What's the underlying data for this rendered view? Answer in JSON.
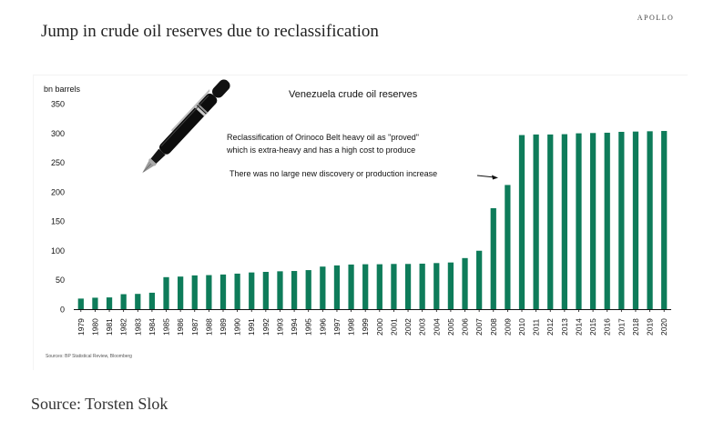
{
  "header": {
    "brand": "APOLLO",
    "headline": "Jump in crude oil reserves due to reclassification"
  },
  "footer": {
    "data_source": "Sources: BP Statistical Review, Bloomberg",
    "attribution": "Source: Torsten Slok"
  },
  "chart_data": {
    "type": "bar",
    "title": "Venezuela crude oil reserves",
    "ylabel": "bn barrels",
    "xlabel": "",
    "ylim": [
      0,
      350
    ],
    "yticks": [
      0,
      50,
      100,
      150,
      200,
      250,
      300,
      350
    ],
    "grid": false,
    "bar_color": "#0e7c5a",
    "categories": [
      "1979",
      "1980",
      "1981",
      "1982",
      "1983",
      "1984",
      "1985",
      "1986",
      "1987",
      "1988",
      "1989",
      "1990",
      "1991",
      "1992",
      "1993",
      "1994",
      "1995",
      "1996",
      "1997",
      "1998",
      "1999",
      "2000",
      "2001",
      "2002",
      "2003",
      "2004",
      "2005",
      "2006",
      "2007",
      "2008",
      "2009",
      "2010",
      "2011",
      "2012",
      "2013",
      "2014",
      "2015",
      "2016",
      "2017",
      "2018",
      "2019",
      "2020"
    ],
    "values": [
      18,
      19.5,
      20,
      25.5,
      26,
      28,
      54.5,
      55.5,
      57.5,
      58,
      59,
      60.5,
      62.5,
      63.5,
      64.5,
      65,
      66.5,
      72.5,
      74.5,
      76,
      76.5,
      76.5,
      77,
      77,
      77.5,
      78.5,
      79.5,
      87,
      99.5,
      172,
      211.5,
      296.5,
      297.5,
      297.5,
      298,
      299.5,
      300,
      300.5,
      302,
      302.5,
      303,
      303.5
    ],
    "annotations": [
      "Reclassification of Orinoco Belt heavy oil as \"proved\"",
      "which is extra-heavy and has a high cost to produce",
      "There was no large new discovery or production increase"
    ]
  },
  "illustration": {
    "icon": "fountain-pen-icon"
  }
}
